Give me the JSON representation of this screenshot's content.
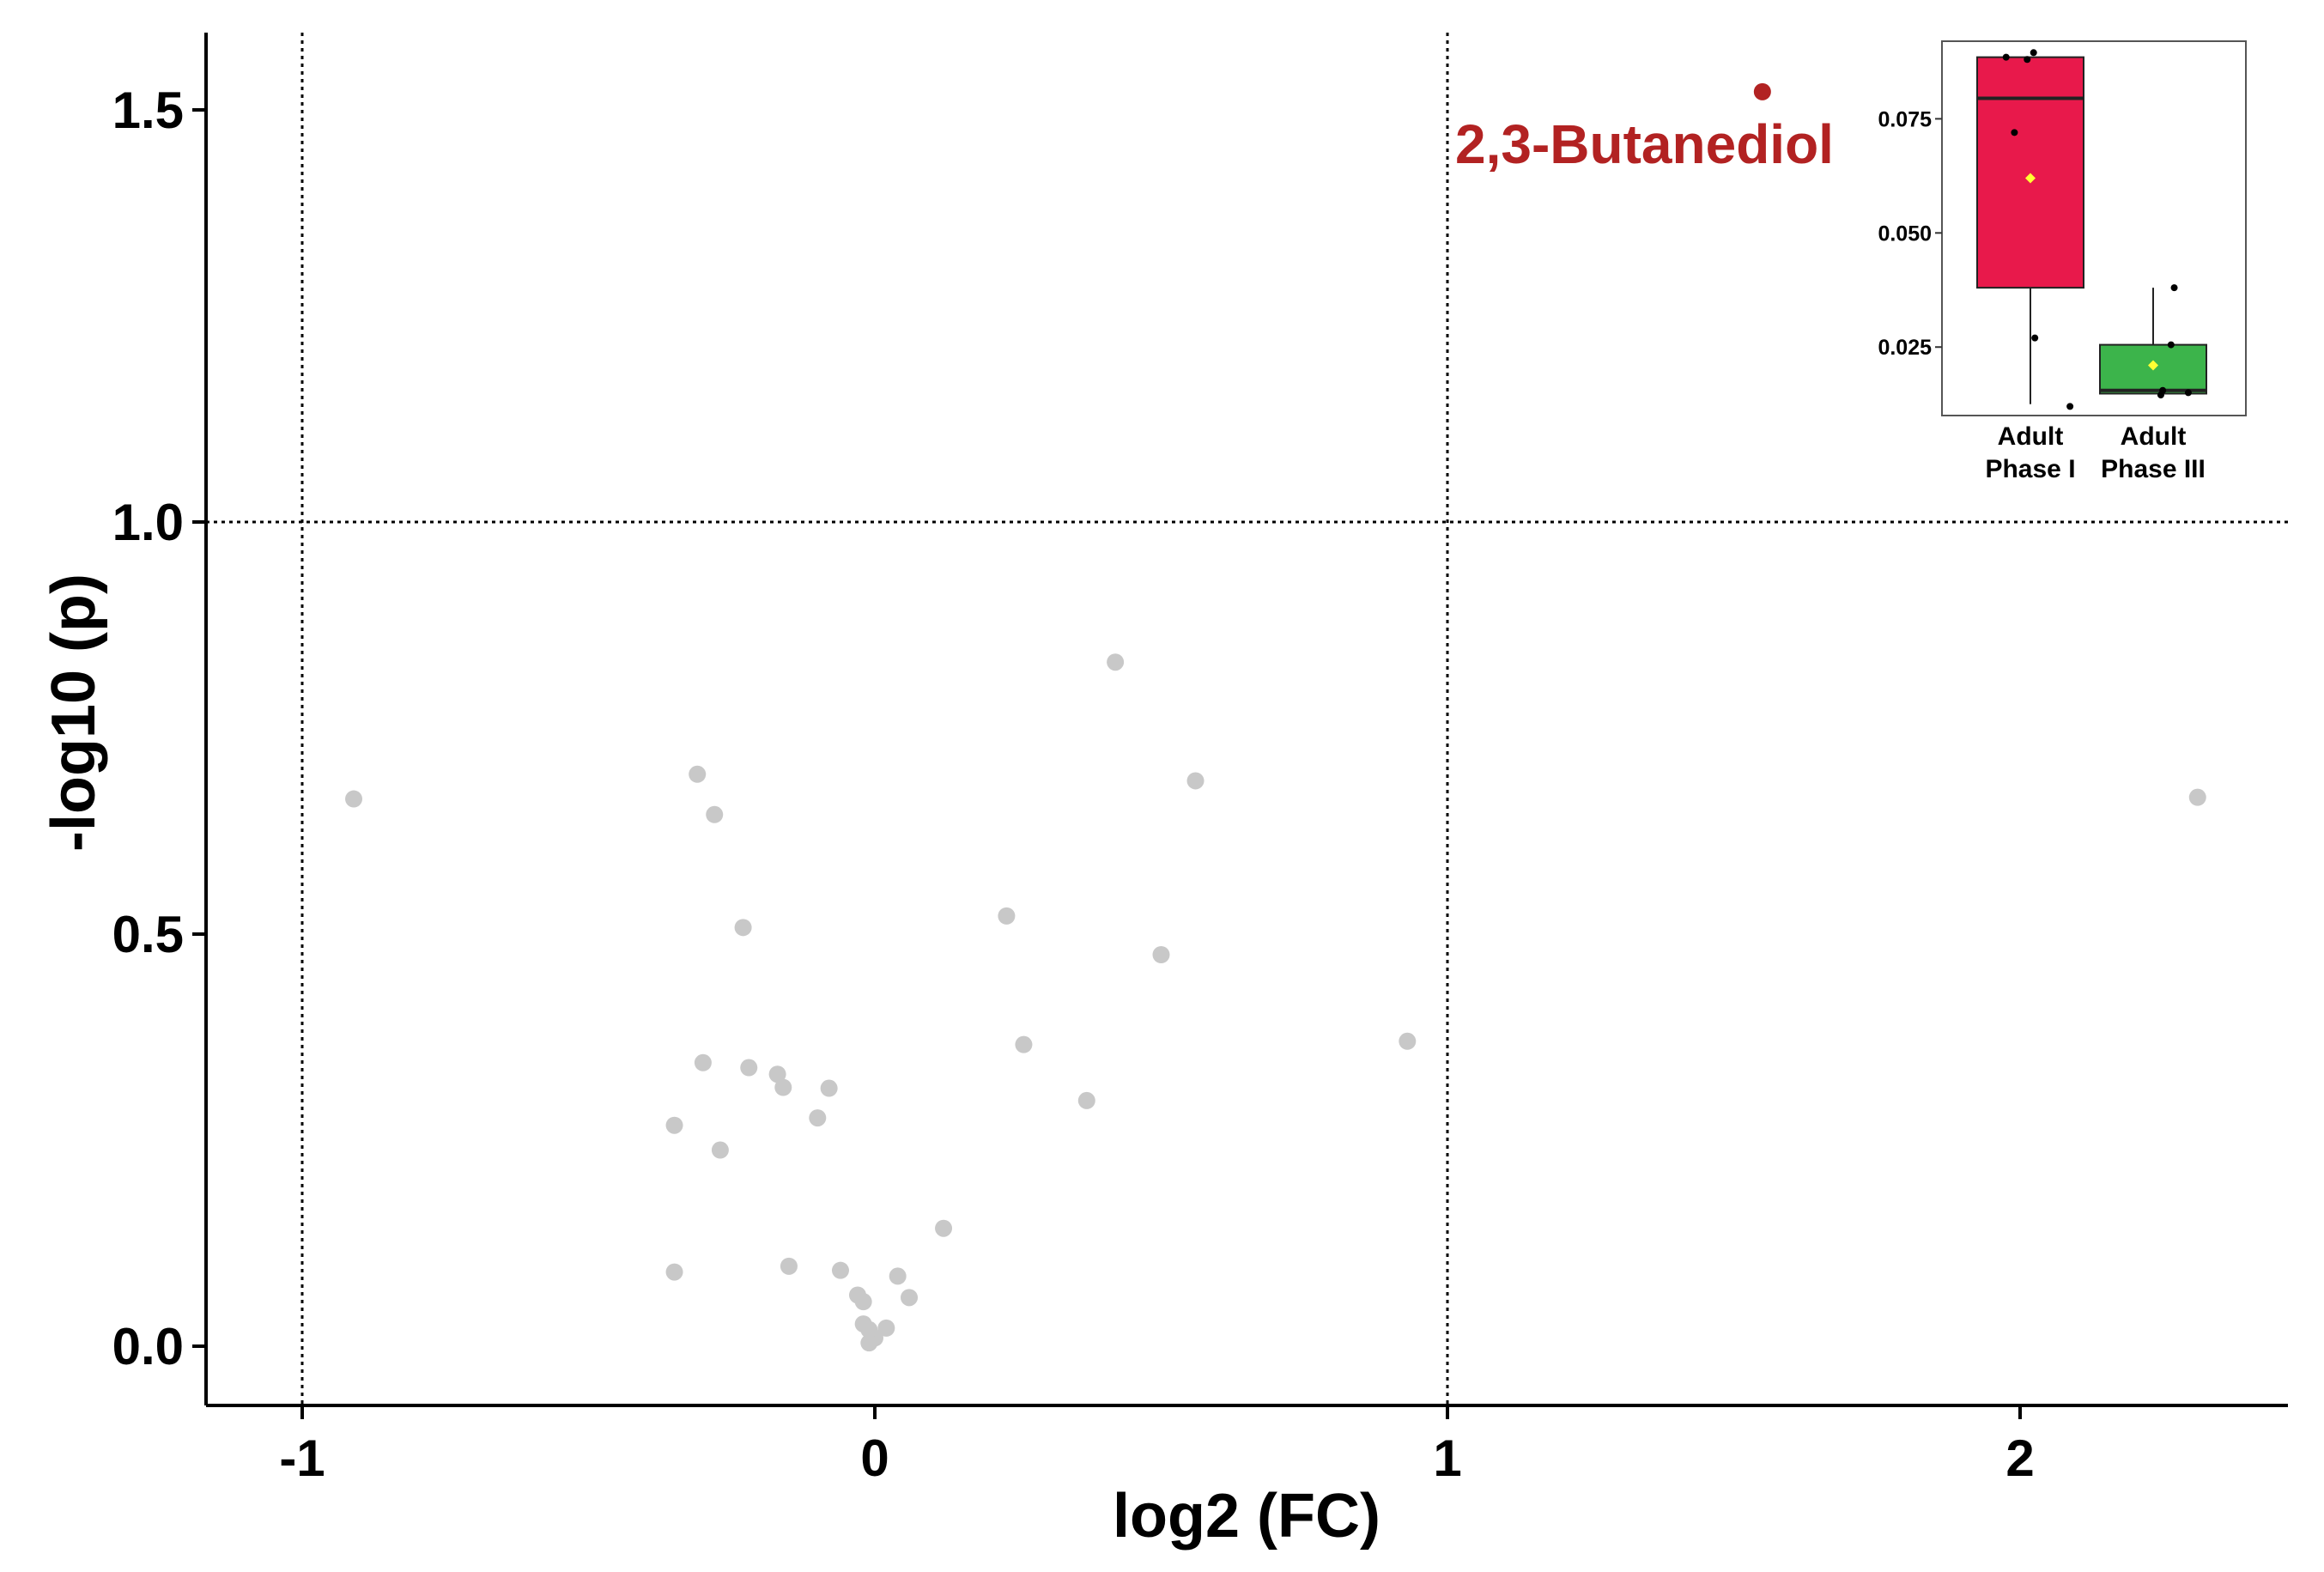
{
  "chart_data": [
    {
      "type": "scatter",
      "xlabel": "log2 (FC)",
      "ylabel": "-log10 (p)",
      "xlim": [
        -1.17,
        2.47
      ],
      "ylim": [
        -0.07,
        1.6
      ],
      "x_ticks": [
        -1,
        0,
        1,
        2
      ],
      "x_tick_labels": [
        "-1",
        "0",
        "1",
        "2"
      ],
      "y_ticks": [
        0.0,
        0.5,
        1.0,
        1.5
      ],
      "y_tick_labels": [
        "0.0",
        "0.5",
        "1.0",
        "1.5"
      ],
      "thresholds": {
        "x": [
          -1,
          1
        ],
        "y": [
          1.0
        ]
      },
      "grid": false,
      "point_color": "#c8c8c8",
      "highlight_color": "#b22222",
      "points": [
        {
          "x": -0.91,
          "y": 0.664
        },
        {
          "x": -0.31,
          "y": 0.694
        },
        {
          "x": -0.28,
          "y": 0.645
        },
        {
          "x": -0.23,
          "y": 0.508
        },
        {
          "x": -0.3,
          "y": 0.344
        },
        {
          "x": -0.22,
          "y": 0.338
        },
        {
          "x": -0.17,
          "y": 0.33
        },
        {
          "x": -0.16,
          "y": 0.314
        },
        {
          "x": -0.08,
          "y": 0.313
        },
        {
          "x": -0.35,
          "y": 0.268
        },
        {
          "x": -0.27,
          "y": 0.238
        },
        {
          "x": -0.1,
          "y": 0.277
        },
        {
          "x": -0.15,
          "y": 0.097
        },
        {
          "x": -0.35,
          "y": 0.09
        },
        {
          "x": -0.06,
          "y": 0.092
        },
        {
          "x": -0.03,
          "y": 0.062
        },
        {
          "x": -0.02,
          "y": 0.054
        },
        {
          "x": 0.04,
          "y": 0.085
        },
        {
          "x": 0.06,
          "y": 0.059
        },
        {
          "x": 0.12,
          "y": 0.143
        },
        {
          "x": -0.02,
          "y": 0.027
        },
        {
          "x": -0.01,
          "y": 0.02
        },
        {
          "x": 0.0,
          "y": 0.01
        },
        {
          "x": -0.01,
          "y": 0.004
        },
        {
          "x": 0.02,
          "y": 0.022
        },
        {
          "x": 0.23,
          "y": 0.522
        },
        {
          "x": 0.26,
          "y": 0.366
        },
        {
          "x": 0.37,
          "y": 0.298
        },
        {
          "x": 0.42,
          "y": 0.83
        },
        {
          "x": 0.5,
          "y": 0.475
        },
        {
          "x": 0.56,
          "y": 0.686
        },
        {
          "x": 0.93,
          "y": 0.37
        },
        {
          "x": 2.31,
          "y": 0.666
        }
      ],
      "highlight": {
        "x": 1.55,
        "y": 1.522,
        "label": "2,3-Butanediol"
      }
    },
    {
      "type": "box",
      "categories": [
        "Adult Phase I",
        "Adult Phase III"
      ],
      "category_lines": [
        [
          "Adult",
          "Phase I"
        ],
        [
          "Adult",
          "Phase III"
        ]
      ],
      "ylim": [
        0.01,
        0.092
      ],
      "y_ticks": [
        0.025,
        0.05,
        0.075
      ],
      "y_tick_labels": [
        "0.025",
        "0.050",
        "0.075"
      ],
      "series": [
        {
          "q1": 0.038,
          "median": 0.0795,
          "q3": 0.0885,
          "whisker_low": 0.0125,
          "whisker_high": 0.0885,
          "mean": 0.062,
          "color": "#e8194b",
          "points": [
            {
              "j": -0.38,
              "y": 0.0885
            },
            {
              "j": 0.05,
              "y": 0.0895
            },
            {
              "j": -0.05,
              "y": 0.088
            },
            {
              "j": -0.25,
              "y": 0.072
            },
            {
              "j": 0.07,
              "y": 0.027
            },
            {
              "j": 0.62,
              "y": 0.012
            }
          ]
        },
        {
          "q1": 0.0148,
          "median": 0.0155,
          "q3": 0.0255,
          "whisker_low": 0.0148,
          "whisker_high": 0.038,
          "mean": 0.021,
          "color": "#3cb44b",
          "points": [
            {
              "j": 0.33,
              "y": 0.038
            },
            {
              "j": 0.28,
              "y": 0.0255
            },
            {
              "j": 0.12,
              "y": 0.0145
            },
            {
              "j": 0.15,
              "y": 0.0155
            },
            {
              "j": 0.55,
              "y": 0.015
            }
          ]
        }
      ],
      "mean_marker_color": "#ffff33"
    }
  ]
}
